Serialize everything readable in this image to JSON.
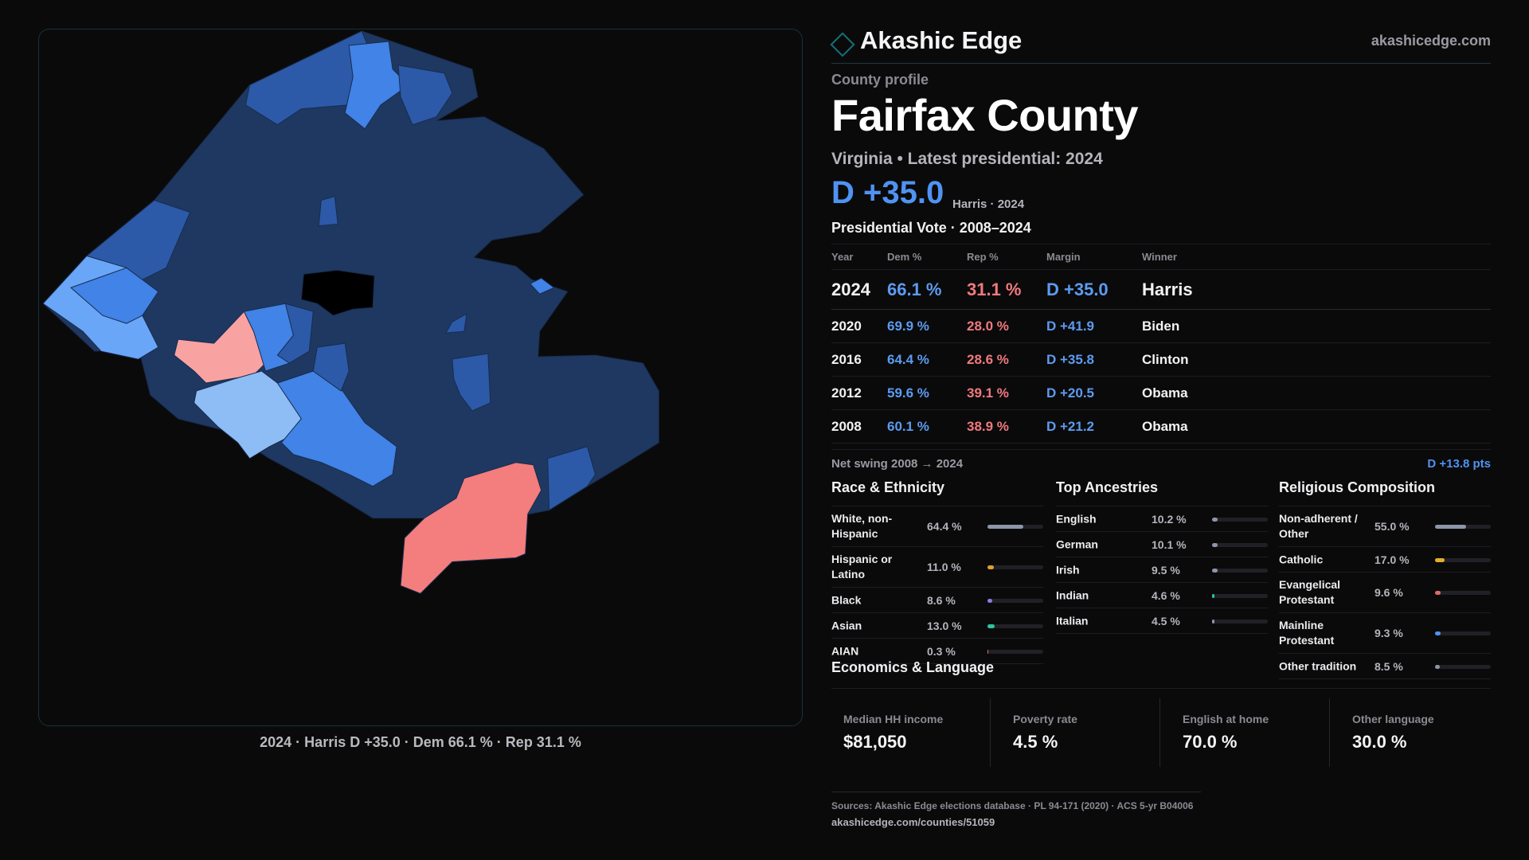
{
  "brand": {
    "name": "Akashic Edge",
    "url": "akashicedge.com"
  },
  "profile": {
    "kicker": "County profile",
    "county": "Fairfax County",
    "subtitle": "Virginia • Latest presidential: 2024",
    "margin": "D +35.0",
    "margin_note": "Harris · 2024"
  },
  "map": {
    "caption": "2024 · Harris D +35.0 · Dem 66.1 % · Rep 31.1 %",
    "colors": {
      "safe_dem": "#1f3862",
      "likely_dem": "#2c5aa8",
      "lean_dem": "#4183e6",
      "tilt_dem": "#6aa6f8",
      "slight_dem": "#8ebdf6",
      "tilt_rep": "#f8a2a2",
      "lean_rep": "#f47d7d",
      "no_data": "#000000"
    }
  },
  "vote_table": {
    "title": "Presidential Vote · 2008–2024",
    "headers": {
      "year": "Year",
      "dem": "Dem %",
      "rep": "Rep %",
      "margin": "Margin",
      "winner": "Winner"
    },
    "rows": [
      {
        "year": "2024",
        "dem": "66.1 %",
        "rep": "31.1 %",
        "margin": "D +35.0",
        "winner": "Harris"
      },
      {
        "year": "2020",
        "dem": "69.9 %",
        "rep": "28.0 %",
        "margin": "D +41.9",
        "winner": "Biden"
      },
      {
        "year": "2016",
        "dem": "64.4 %",
        "rep": "28.6 %",
        "margin": "D +35.8",
        "winner": "Clinton"
      },
      {
        "year": "2012",
        "dem": "59.6 %",
        "rep": "39.1 %",
        "margin": "D +20.5",
        "winner": "Obama"
      },
      {
        "year": "2008",
        "dem": "60.1 %",
        "rep": "38.9 %",
        "margin": "D +21.2",
        "winner": "Obama"
      }
    ],
    "swing_label": "Net swing 2008 → 2024",
    "swing_value": "D +13.8 pts"
  },
  "race": {
    "title": "Race & Ethnicity",
    "rows": [
      {
        "label": "White, non-Hispanic",
        "value": "64.4 %",
        "pct": 64.4,
        "color": "#8c96a8"
      },
      {
        "label": "Hispanic or Latino",
        "value": "11.0 %",
        "pct": 11.0,
        "color": "#e0a02a"
      },
      {
        "label": "Black",
        "value": "8.6 %",
        "pct": 8.6,
        "color": "#8f7ae0"
      },
      {
        "label": "Asian",
        "value": "13.0 %",
        "pct": 13.0,
        "color": "#2fc4a0"
      },
      {
        "label": "AIAN",
        "value": "0.3 %",
        "pct": 0.3,
        "color": "#e0713a"
      }
    ]
  },
  "ancestry": {
    "title": "Top Ancestries",
    "rows": [
      {
        "label": "English",
        "value": "10.2 %",
        "pct": 10.2,
        "color": "#8c96a8"
      },
      {
        "label": "German",
        "value": "10.1 %",
        "pct": 10.1,
        "color": "#8c96a8"
      },
      {
        "label": "Irish",
        "value": "9.5 %",
        "pct": 9.5,
        "color": "#8c96a8"
      },
      {
        "label": "Indian",
        "value": "4.6 %",
        "pct": 4.6,
        "color": "#2fc4a0"
      },
      {
        "label": "Italian",
        "value": "4.5 %",
        "pct": 4.5,
        "color": "#8c96a8"
      }
    ]
  },
  "religion": {
    "title": "Religious Composition",
    "rows": [
      {
        "label": "Non-adherent / Other",
        "value": "55.0 %",
        "pct": 55.0,
        "color": "#8c96a8"
      },
      {
        "label": "Catholic",
        "value": "17.0 %",
        "pct": 17.0,
        "color": "#e0b02a"
      },
      {
        "label": "Evangelical Protestant",
        "value": "9.6 %",
        "pct": 9.6,
        "color": "#e06a6a"
      },
      {
        "label": "Mainline Protestant",
        "value": "9.3 %",
        "pct": 9.3,
        "color": "#4f93f2"
      },
      {
        "label": "Other tradition",
        "value": "8.5 %",
        "pct": 8.5,
        "color": "#8c96a8"
      }
    ]
  },
  "economics": {
    "title": "Economics & Language",
    "cards": [
      {
        "label": "Median HH income",
        "value": "$81,050"
      },
      {
        "label": "Poverty rate",
        "value": "4.5 %"
      },
      {
        "label": "English at home",
        "value": "70.0 %"
      },
      {
        "label": "Other language",
        "value": "30.0 %"
      }
    ]
  },
  "footer": {
    "sources": "Sources: Akashic Edge elections database · PL 94-171 (2020) · ACS 5-yr B04006",
    "url": "akashicedge.com/counties/51059"
  }
}
